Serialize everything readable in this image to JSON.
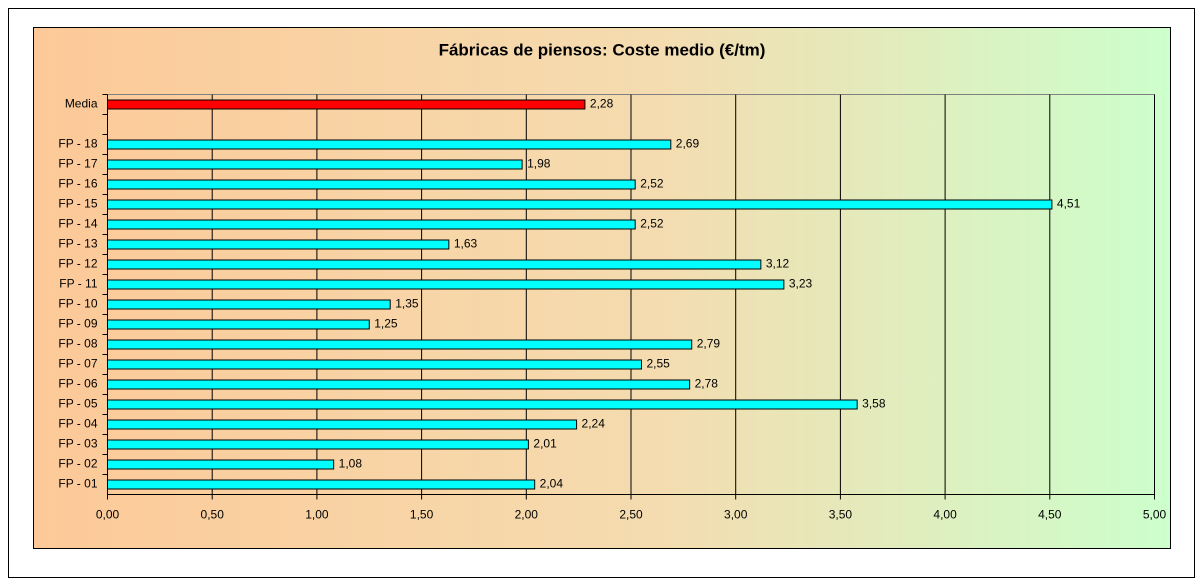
{
  "chart_data": {
    "type": "bar",
    "orientation": "horizontal",
    "title": "Fábricas de piensos: Coste medio (€/tm)",
    "categories": [
      "Media",
      null,
      "FP - 18",
      "FP - 17",
      "FP - 16",
      "FP - 15",
      "FP - 14",
      "FP - 13",
      "FP - 12",
      "FP - 11",
      "FP - 10",
      "FP - 09",
      "FP - 08",
      "FP - 07",
      "FP - 06",
      "FP - 05",
      "FP - 04",
      "FP - 03",
      "FP - 02",
      "FP - 01"
    ],
    "values": [
      2.28,
      null,
      2.69,
      1.98,
      2.52,
      4.51,
      2.52,
      1.63,
      3.12,
      3.23,
      1.35,
      1.25,
      2.79,
      2.55,
      2.78,
      3.58,
      2.24,
      2.01,
      1.08,
      2.04
    ],
    "value_labels": [
      "2,28",
      null,
      "2,69",
      "1,98",
      "2,52",
      "4,51",
      "2,52",
      "1,63",
      "3,12",
      "3,23",
      "1,35",
      "1,25",
      "2,79",
      "2,55",
      "2,78",
      "3,58",
      "2,24",
      "2,01",
      "1,08",
      "2,04"
    ],
    "colors": [
      "#ff0000",
      null,
      "#00ffff",
      "#00ffff",
      "#00ffff",
      "#00ffff",
      "#00ffff",
      "#00ffff",
      "#00ffff",
      "#00ffff",
      "#00ffff",
      "#00ffff",
      "#00ffff",
      "#00ffff",
      "#00ffff",
      "#00ffff",
      "#00ffff",
      "#00ffff",
      "#00ffff",
      "#00ffff"
    ],
    "xlim": [
      0,
      5
    ],
    "xticks": [
      {
        "value": 0,
        "label": "0,00"
      },
      {
        "value": 0.5,
        "label": "0,50"
      },
      {
        "value": 1,
        "label": "1,00"
      },
      {
        "value": 1.5,
        "label": "1,50"
      },
      {
        "value": 2,
        "label": "2,00"
      },
      {
        "value": 2.5,
        "label": "2,50"
      },
      {
        "value": 3,
        "label": "3,00"
      },
      {
        "value": 3.5,
        "label": "3,50"
      },
      {
        "value": 4,
        "label": "4,00"
      },
      {
        "value": 4.5,
        "label": "4,50"
      },
      {
        "value": 5,
        "label": "5,00"
      }
    ],
    "grid": true
  }
}
